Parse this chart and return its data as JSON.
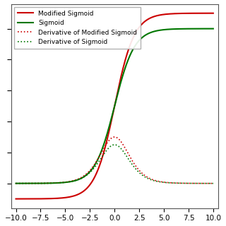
{
  "xlim": [
    -10.5,
    10.5
  ],
  "mod_sigmoid_scale": 1.2,
  "mod_sigmoid_shift": -0.1,
  "line_colors": {
    "mod_sigmoid": "#cc0000",
    "sigmoid": "#007700",
    "mod_sigmoid_deriv": "#cc0000",
    "sigmoid_deriv": "#007700"
  },
  "legend_labels": [
    "Modified Sigmoid",
    "Sigmoid",
    "Derivative of Modified Sigmoid",
    "Derivative of Sigmoid"
  ],
  "legend_loc": "upper left",
  "figsize": [
    3.2,
    3.2
  ],
  "dpi": 100,
  "x_ticks": [
    -10.0,
    -7.5,
    -5.0,
    -2.5,
    0.0,
    2.5,
    5.0,
    7.5,
    10.0
  ],
  "background_color": "#ffffff"
}
